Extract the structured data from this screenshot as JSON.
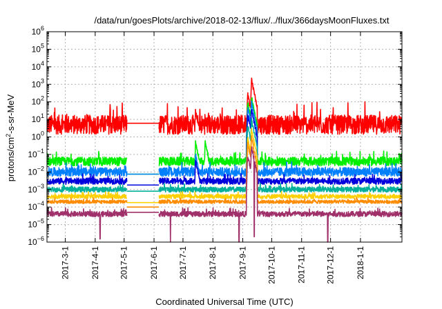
{
  "chart_data": {
    "type": "line",
    "title": "/data/run/goesPlots/archive/2018-02-13/flux/../flux/366daysMoonFluxes.txt",
    "xlabel": "Coordinated Universal Time (UTC)",
    "ylabel_parts": [
      "protons/cm",
      "2",
      "-s-sr-MeV"
    ],
    "y_scale": "log",
    "ylim_exponents": [
      -6,
      6
    ],
    "y_tick_exponents": [
      -6,
      -5,
      -4,
      -3,
      -2,
      -1,
      0,
      1,
      2,
      3,
      4,
      5,
      6
    ],
    "xlim": [
      "2017-02-10",
      "2018-02-13"
    ],
    "x_ticks": [
      {
        "date": "2017-03-01",
        "label": "2017-3-1"
      },
      {
        "date": "2017-04-01",
        "label": "2017-4-1"
      },
      {
        "date": "2017-05-01",
        "label": "2017-5-1"
      },
      {
        "date": "2017-06-01",
        "label": "2017-6-1"
      },
      {
        "date": "2017-07-01",
        "label": "2017-7-1"
      },
      {
        "date": "2017-08-01",
        "label": "2017-8-1"
      },
      {
        "date": "2017-09-01",
        "label": "2017-9-1"
      },
      {
        "date": "2017-10-01",
        "label": "2017-10-1"
      },
      {
        "date": "2017-11-01",
        "label": "2017-11-1"
      },
      {
        "date": "2017-12-01",
        "label": "2017-12-1"
      },
      {
        "date": "2018-01-01",
        "label": "2018-1-1"
      }
    ],
    "grid": true,
    "data_gap": [
      "2017-05-04",
      "2017-06-06"
    ],
    "series": [
      {
        "color": "#ff0000",
        "baseline": 5,
        "noise_decades": 0.55,
        "gap_value": 6,
        "events": [
          {
            "date": "2017-07-14",
            "peak": 30
          },
          {
            "date": "2017-09-06",
            "peak": 300
          },
          {
            "date": "2017-09-10",
            "peak": 2000
          }
        ]
      },
      {
        "color": "#00ee00",
        "baseline": 0.04,
        "noise_decades": 0.25,
        "gap_value": 0.0075,
        "events": [
          {
            "date": "2017-07-14",
            "peak": 0.5
          },
          {
            "date": "2017-07-24",
            "peak": 0.5
          },
          {
            "date": "2017-09-06",
            "peak": 100
          },
          {
            "date": "2017-09-10",
            "peak": 200
          }
        ]
      },
      {
        "color": "#0080ff",
        "baseline": 0.01,
        "noise_decades": 0.25,
        "gap_value": 0.0075,
        "events": [
          {
            "date": "2017-07-14",
            "peak": 0.1
          },
          {
            "date": "2017-09-06",
            "peak": 50
          },
          {
            "date": "2017-09-10",
            "peak": 100
          }
        ]
      },
      {
        "color": "#0000dd",
        "baseline": 0.003,
        "noise_decades": 0.18,
        "gap_value": 0.0018,
        "events": [
          {
            "date": "2017-07-14",
            "peak": 0.05
          },
          {
            "date": "2017-09-06",
            "peak": 20
          },
          {
            "date": "2017-09-10",
            "peak": 40
          }
        ]
      },
      {
        "color": "#00b09a",
        "baseline": 0.001,
        "noise_decades": 0.15,
        "gap_value": 0.0008,
        "events": [
          {
            "date": "2017-09-06",
            "peak": 5
          },
          {
            "date": "2017-09-10",
            "peak": 10
          }
        ]
      },
      {
        "color": "#ffd000",
        "baseline": 0.0004,
        "noise_decades": 0.12,
        "gap_value": 0.00018,
        "events": [
          {
            "date": "2017-09-06",
            "peak": 1
          },
          {
            "date": "2017-09-10",
            "peak": 3
          }
        ]
      },
      {
        "color": "#ff8c00",
        "baseline": 0.0002,
        "noise_decades": 0.1,
        "gap_value": 0.0001,
        "events": [
          {
            "date": "2017-09-06",
            "peak": 0.5
          },
          {
            "date": "2017-09-10",
            "peak": 1
          }
        ]
      },
      {
        "color": "#a0306a",
        "baseline": 4e-05,
        "noise_decades": 0.15,
        "gap_value": 5e-05,
        "events": [
          {
            "date": "2017-09-06",
            "peak": 0.1
          },
          {
            "date": "2017-09-10",
            "peak": 0.3
          }
        ],
        "dips": [
          {
            "date": "2017-04-06",
            "min": 1.5e-06
          },
          {
            "date": "2017-06-18",
            "min": 8e-07
          },
          {
            "date": "2017-08-28",
            "min": 8e-07
          },
          {
            "date": "2017-09-13",
            "min": 2e-06
          },
          {
            "date": "2017-11-28",
            "min": 8e-07
          }
        ]
      }
    ]
  }
}
